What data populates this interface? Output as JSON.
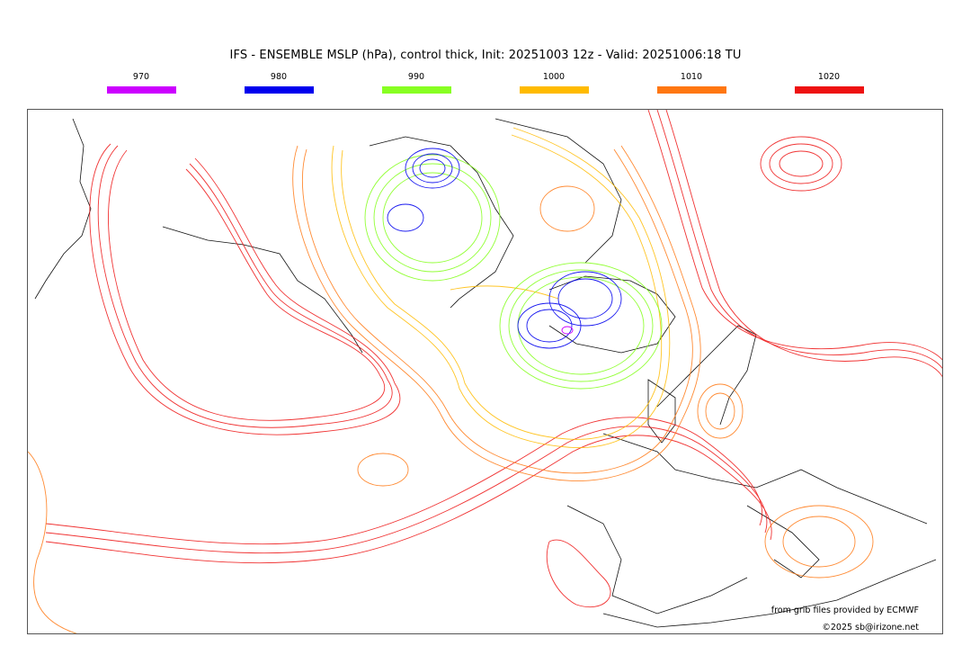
{
  "title": "IFS - ENSEMBLE MSLP (hPa), control thick, Init: 20251003 12z - Valid: 20251006:18 TU",
  "legend": [
    {
      "label": "970",
      "color": "#cc00ff"
    },
    {
      "label": "980",
      "color": "#0000ee"
    },
    {
      "label": "990",
      "color": "#88ff22"
    },
    {
      "label": "1000",
      "color": "#ffbb00"
    },
    {
      "label": "1010",
      "color": "#ff7711"
    },
    {
      "label": "1020",
      "color": "#ee1111"
    }
  ],
  "credits": {
    "source": "from grib files provided by ECMWF",
    "copyright": "©2025 sb@irizone.net"
  }
}
